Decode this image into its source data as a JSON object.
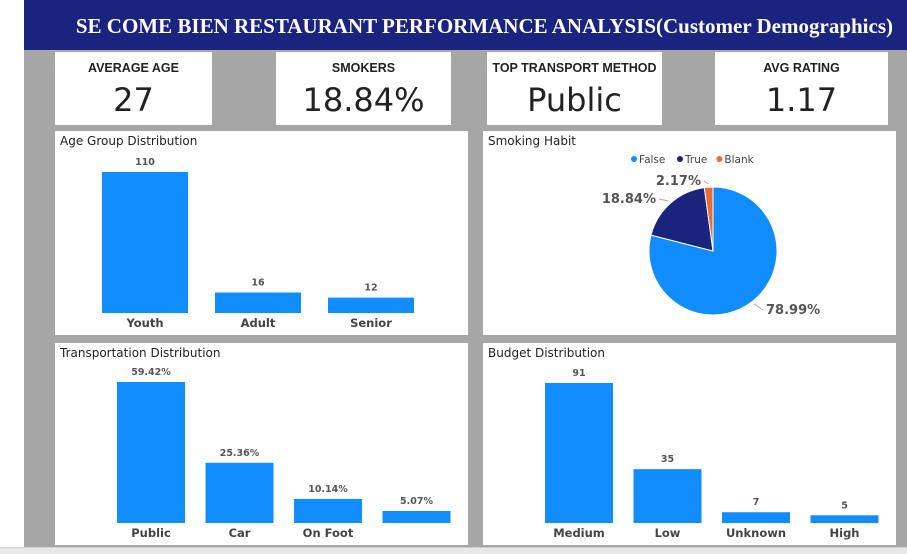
{
  "header": {
    "title": "SE COME BIEN RESTAURANT PERFORMANCE ANALYSIS(Customer Demographics)"
  },
  "kpis": [
    {
      "label": "AVERAGE AGE",
      "value": "27"
    },
    {
      "label": "SMOKERS",
      "value": "18.84%"
    },
    {
      "label": "TOP TRANSPORT METHOD",
      "value": "Public"
    },
    {
      "label": "AVG RATING",
      "value": "1.17"
    }
  ],
  "colors": {
    "bar": "#118dff",
    "header": "#1a237e",
    "pie_false": "#118dff",
    "pie_true": "#1a237e",
    "pie_blank": "#e66c37"
  },
  "chart_data": [
    {
      "type": "bar",
      "title": "Age Group Distribution",
      "categories": [
        "Youth",
        "Adult",
        "Senior"
      ],
      "values": [
        110,
        16,
        12
      ],
      "labels": [
        "110",
        "16",
        "12"
      ]
    },
    {
      "type": "pie",
      "title": "Smoking Habit",
      "legend": [
        "False",
        "True",
        "Blank"
      ],
      "values": [
        78.99,
        18.84,
        2.17
      ],
      "labels": [
        "78.99%",
        "18.84%",
        "2.17%"
      ]
    },
    {
      "type": "bar",
      "title": "Transportation Distribution",
      "categories": [
        "Public",
        "Car",
        "On Foot",
        ""
      ],
      "values": [
        59.42,
        25.36,
        10.14,
        5.07
      ],
      "labels": [
        "59.42%",
        "25.36%",
        "10.14%",
        "5.07%"
      ]
    },
    {
      "type": "bar",
      "title": "Budget Distribution",
      "categories": [
        "Medium",
        "Low",
        "Unknown",
        "High"
      ],
      "values": [
        91,
        35,
        7,
        5
      ],
      "labels": [
        "91",
        "35",
        "7",
        "5"
      ]
    }
  ]
}
